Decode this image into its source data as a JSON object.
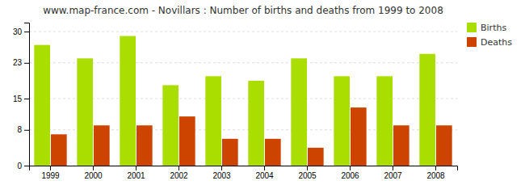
{
  "chart_data": {
    "type": "bar",
    "title": "www.map-france.com - Novillars : Number of births and deaths from 1999 to 2008",
    "categories": [
      "1999",
      "2000",
      "2001",
      "2002",
      "2003",
      "2004",
      "2005",
      "2006",
      "2007",
      "2008"
    ],
    "series": [
      {
        "name": "Births",
        "color": "#aadd00",
        "values": [
          27,
          24,
          29,
          18,
          20,
          19,
          24,
          20,
          20,
          25
        ]
      },
      {
        "name": "Deaths",
        "color": "#cc4400",
        "values": [
          7,
          9,
          9,
          11,
          6,
          6,
          4,
          13,
          9,
          9
        ]
      }
    ],
    "ylim": [
      0,
      32
    ],
    "yticks": [
      0,
      8,
      15,
      23,
      30
    ],
    "grid": true,
    "legend": "upper right"
  }
}
